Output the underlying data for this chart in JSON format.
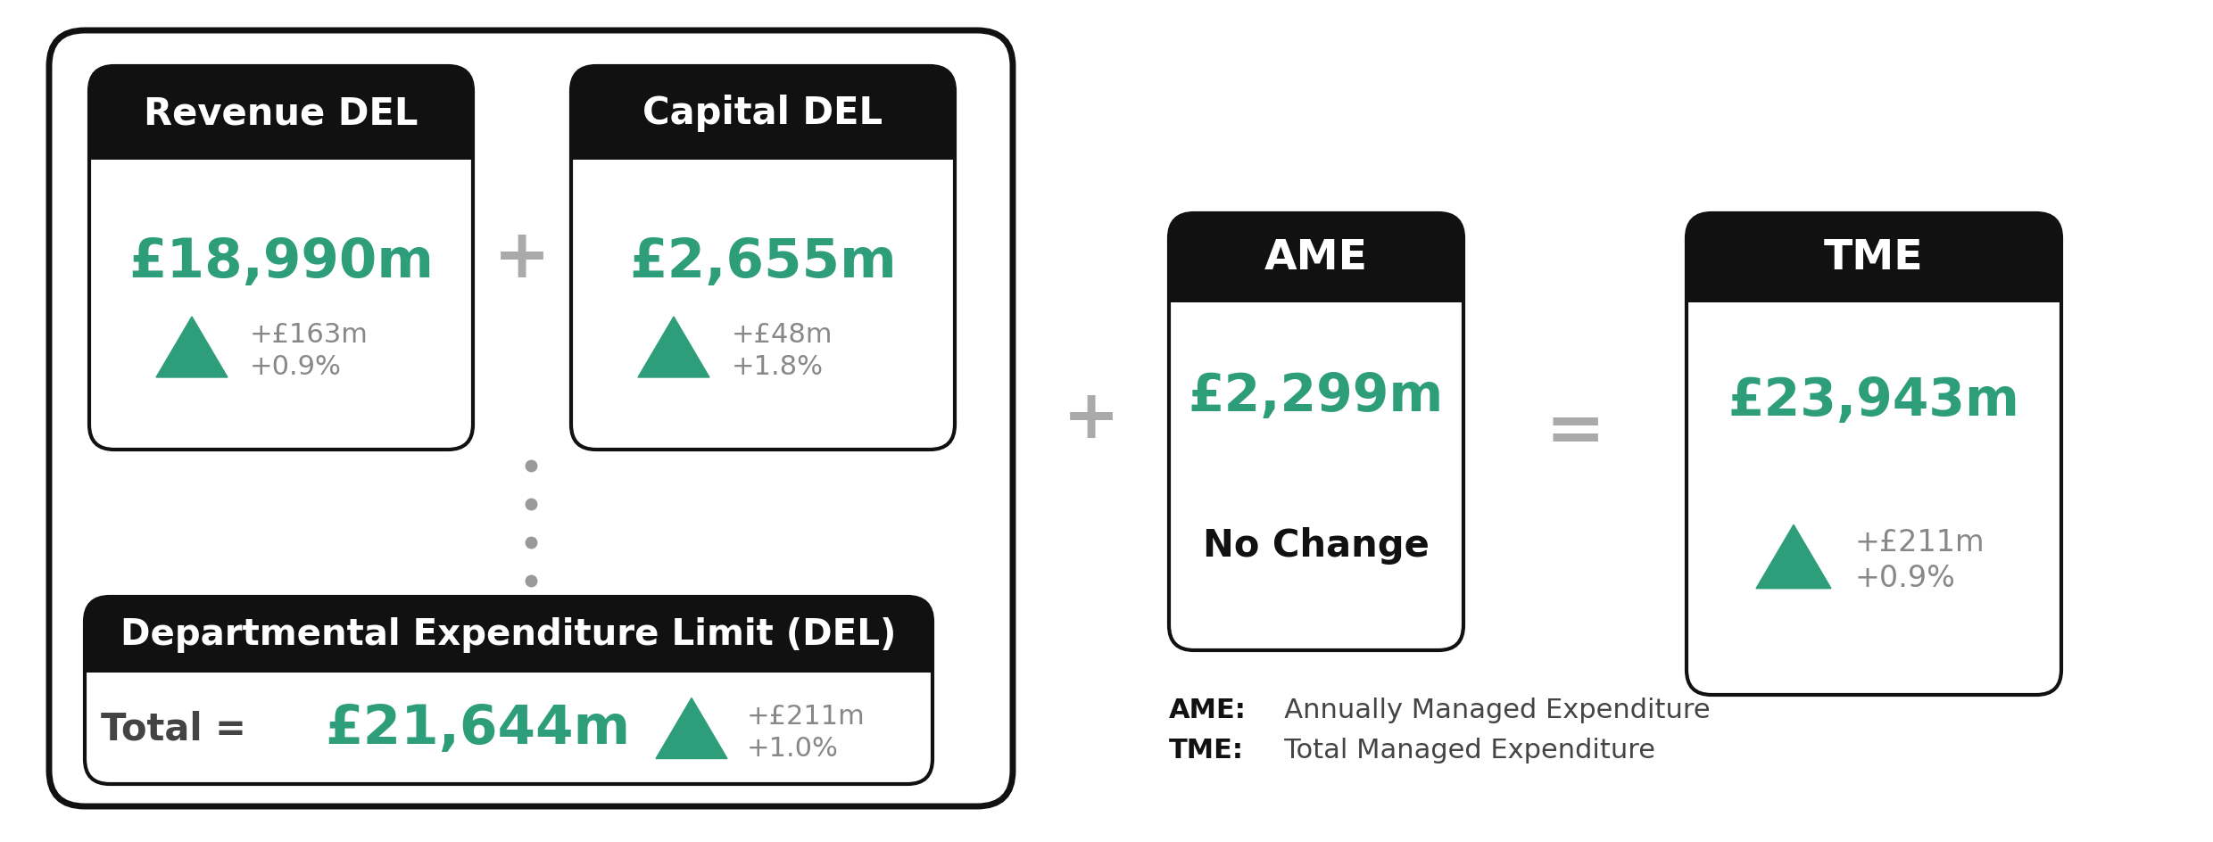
{
  "bg_color": "#ffffff",
  "teal": "#2e9e7a",
  "black": "#111111",
  "gray": "#aaaaaa",
  "dark_gray": "#444444",
  "light_gray": "#888888",
  "rev_del_title": "Revenue DEL",
  "rev_del_value": "£18,990m",
  "rev_del_change1": "+£163m",
  "rev_del_change2": "+0.9%",
  "cap_del_title": "Capital DEL",
  "cap_del_value": "£2,655m",
  "cap_del_change1": "+£48m",
  "cap_del_change2": "+1.8%",
  "del_title": "Departmental Expenditure Limit (DEL)",
  "del_total_label": "Total = ",
  "del_total_value": "£21,644m",
  "del_change1": "+£211m",
  "del_change2": "+1.0%",
  "ame_title": "AME",
  "ame_value": "£2,299m",
  "ame_change": "No Change",
  "tme_title": "TME",
  "tme_value": "£23,943m",
  "tme_change1": "+£211m",
  "tme_change2": "+0.9%",
  "legend_ame_bold": "AME:",
  "legend_ame_full": "   Annually Managed Expenditure",
  "legend_tme_bold": "TME:",
  "legend_tme_full": "   Total Managed Expenditure"
}
